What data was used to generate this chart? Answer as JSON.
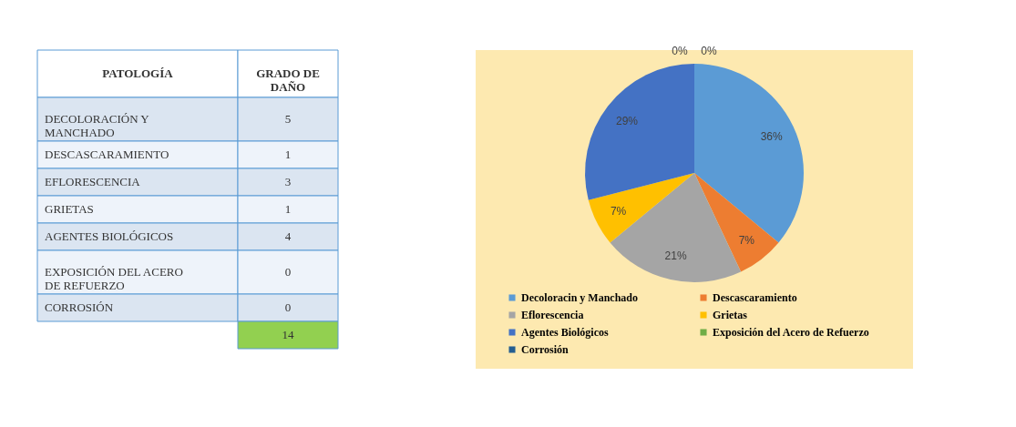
{
  "chart_data": [
    {
      "type": "other",
      "xlabel": "PATOLOGÍA",
      "ylabel": "GRADO DE DAÑO",
      "categories": [
        "DECOLORACIÓN Y MANCHADO",
        "DESCASCARAMIENTO",
        "EFLORESCENCIA",
        "GRIETAS",
        "AGENTES BIOLÓGICOS",
        "EXPOSICIÓN DEL ACERO DE REFUERZO",
        "CORROSIÓN"
      ],
      "values": [
        5,
        1,
        3,
        1,
        4,
        0,
        0
      ],
      "data_labels": true,
      "annotations": [
        "14"
      ]
    },
    {
      "type": "pie",
      "categories": [
        "Decoloracin y Manchado",
        "Descascaramiento",
        "Eflorescencia",
        "Grietas",
        "Agentes Biológicos",
        "Exposición del Acero de Refuerzo",
        "Corrosión"
      ],
      "values": [
        36,
        7,
        21,
        7,
        29,
        0,
        0
      ],
      "value_labels": [
        "36%",
        "7%",
        "21%",
        "7%",
        "29%",
        "0%",
        "0%"
      ],
      "colors": [
        "#5b9bd5",
        "#ed7d31",
        "#a5a5a5",
        "#ffc000",
        "#4472c4",
        "#70ad47",
        "#255e91"
      ],
      "legend": "bottom"
    }
  ]
}
